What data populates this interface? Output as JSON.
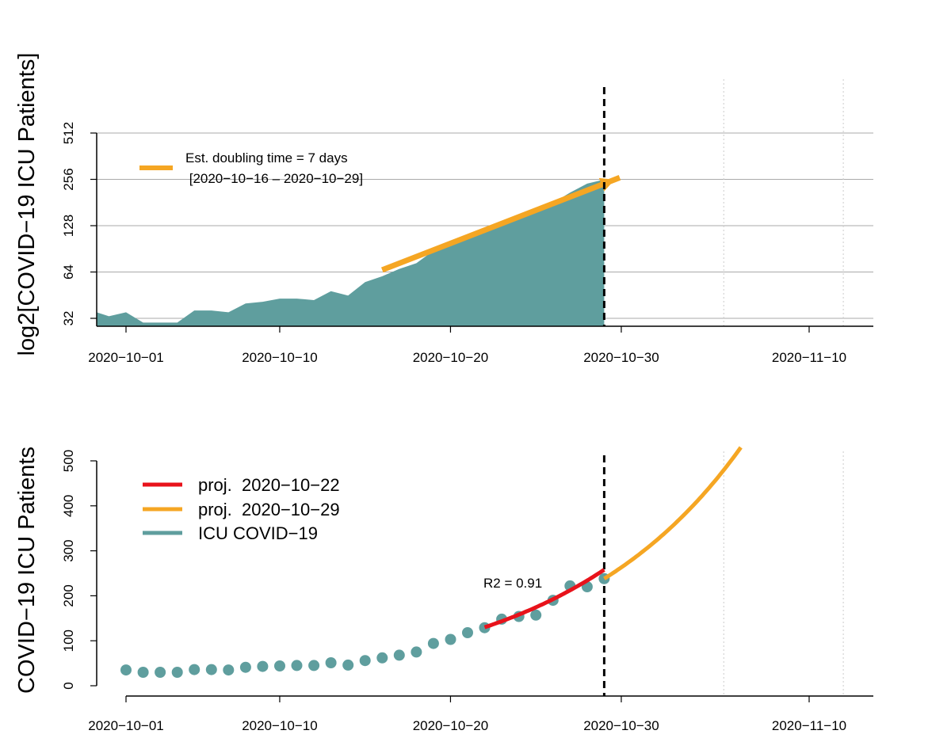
{
  "colors": {
    "teal": "#5f9e9e",
    "orange": "#f5a623",
    "red": "#e8131b",
    "grid": "#aaaaaa",
    "axis": "#000000"
  },
  "chart_data": [
    {
      "type": "area",
      "title": "",
      "ylabel": "log2[COVID−19 ICU Patients]",
      "xlabel": "",
      "y_scale": "log2",
      "ylim": [
        30,
        512
      ],
      "y_ticks": [
        32,
        64,
        128,
        256,
        512
      ],
      "y_tick_labels": [
        "32",
        "64",
        "128",
        "256",
        "512"
      ],
      "x_range": [
        "2020-09-29",
        "2020-11-14"
      ],
      "x_ticks": [
        "2020-10-01",
        "2020-10-10",
        "2020-10-20",
        "2020-10-30",
        "2020-11-10"
      ],
      "x_tick_labels": [
        "2020−10−01",
        "2020−10−10",
        "2020−10−20",
        "2020−10−30",
        "2020−11−10"
      ],
      "x_grid_dotted": [
        "2020-11-05",
        "2020-11-12"
      ],
      "vline_date": "2020-10-29",
      "series": [
        {
          "name": "ICU COVID−19",
          "start_date": "2020-09-29",
          "values": [
            35,
            33,
            35,
            30,
            30,
            30,
            36,
            36,
            35,
            40,
            41,
            43,
            43,
            42,
            48,
            45,
            55,
            60,
            67,
            73,
            88,
            97,
            110,
            120,
            135,
            145,
            155,
            180,
            210,
            240,
            255
          ]
        }
      ],
      "fit_line": {
        "name": "Est. doubling time",
        "start_date": "2020-10-16",
        "end_date": "2020-10-29",
        "start_value": 66,
        "end_value": 240
      },
      "legend": {
        "position": "top-left",
        "line1": "Est. doubling time = 7 days",
        "line2": " [2020−10−16 – 2020−10−29]"
      }
    },
    {
      "type": "scatter",
      "title": "",
      "ylabel": "COVID−19 ICU Patients",
      "xlabel": "",
      "ylim": [
        0,
        500
      ],
      "y_ticks": [
        0,
        100,
        200,
        300,
        400,
        500
      ],
      "y_tick_labels": [
        "0",
        "100",
        "200",
        "300",
        "400",
        "500"
      ],
      "x_range": [
        "2020-09-29",
        "2020-11-14"
      ],
      "x_ticks": [
        "2020-10-01",
        "2020-10-10",
        "2020-10-20",
        "2020-10-30",
        "2020-11-10"
      ],
      "x_tick_labels": [
        "2020−10−01",
        "2020−10−10",
        "2020−10−20",
        "2020−10−30",
        "2020−11−10"
      ],
      "x_grid_dotted": [
        "2020-11-05",
        "2020-11-12"
      ],
      "vline_date": "2020-10-29",
      "series": [
        {
          "name": "ICU COVID−19",
          "start_date": "2020-10-01",
          "values": [
            35,
            30,
            30,
            30,
            36,
            36,
            35,
            41,
            43,
            44,
            45,
            45,
            51,
            46,
            56,
            62,
            68,
            75,
            94,
            103,
            118,
            129,
            148,
            154,
            157,
            190,
            222,
            220,
            238
          ]
        }
      ],
      "projections": [
        {
          "name": "proj.  2020−10−22",
          "color_key": "red",
          "start_date": "2020-10-22",
          "end_date": "2020-10-29",
          "start_value": 130,
          "end_value": 258
        },
        {
          "name": "proj.  2020−10−29",
          "color_key": "orange",
          "start_date": "2020-10-29",
          "end_date": "2020-11-06",
          "start_value": 238,
          "end_value": 530
        }
      ],
      "annotation": "R2 = 0.91",
      "legend": {
        "position": "top-left",
        "items": [
          "proj.  2020−10−22",
          "proj.  2020−10−29",
          "ICU COVID−19"
        ]
      }
    }
  ]
}
